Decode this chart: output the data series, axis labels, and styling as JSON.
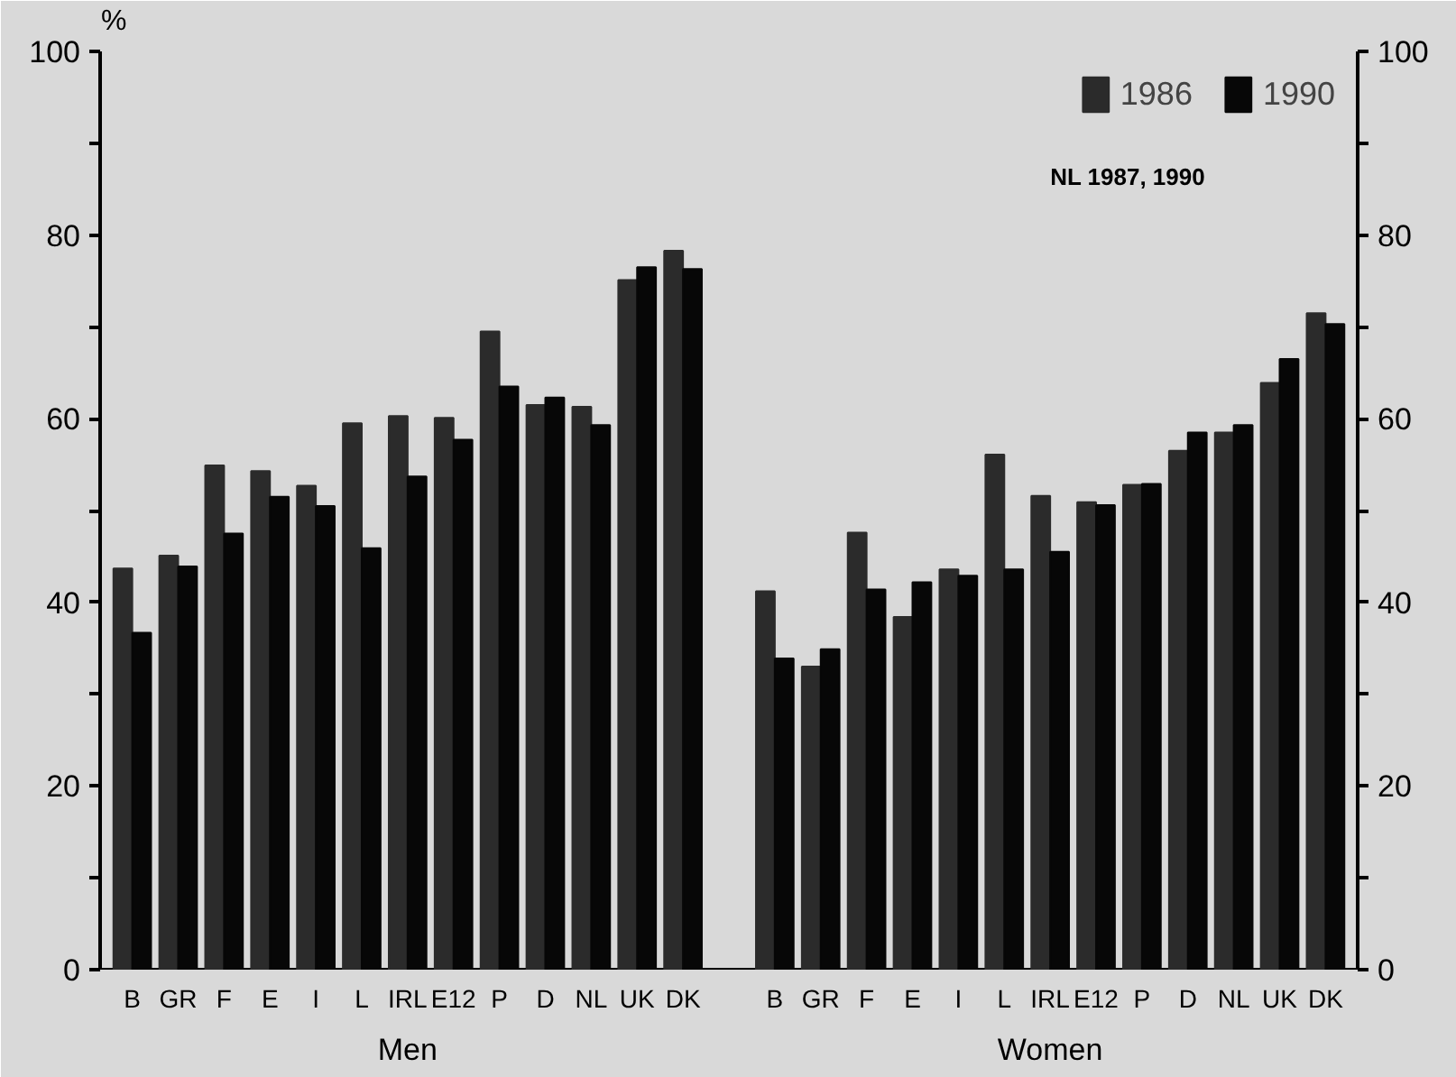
{
  "chart_data": {
    "type": "bar",
    "categories": [
      "B",
      "GR",
      "F",
      "E",
      "I",
      "L",
      "IRL",
      "E12",
      "P",
      "D",
      "NL",
      "UK",
      "DK",
      null,
      "B",
      "GR",
      "F",
      "E",
      "I",
      "L",
      "IRL",
      "E12",
      "P",
      "D",
      "NL",
      "UK",
      "DK"
    ],
    "series": [
      {
        "name": "1986",
        "color": "#2b2b2b",
        "values": [
          43.7,
          45.1,
          54.9,
          54.3,
          52.7,
          59.5,
          60.3,
          60.1,
          69.5,
          61.5,
          61.3,
          75.1,
          78.3,
          null,
          41.2,
          33.0,
          47.6,
          38.4,
          43.6,
          56.1,
          51.6,
          50.9,
          52.8,
          56.5,
          58.5,
          63.9,
          71.5
        ]
      },
      {
        "name": "1990",
        "color": "#070707",
        "values": [
          36.7,
          43.9,
          47.5,
          51.5,
          50.5,
          45.9,
          53.7,
          57.7,
          63.5,
          62.3,
          59.3,
          76.5,
          76.3,
          null,
          33.9,
          34.9,
          41.4,
          42.2,
          42.9,
          43.6,
          45.5,
          50.6,
          52.9,
          58.5,
          59.3,
          66.5,
          70.3
        ]
      }
    ],
    "ylabel": "%",
    "ylim": [
      0,
      100
    ],
    "yticks": [
      0,
      {
        "value": 10,
        "label": null
      },
      20,
      {
        "value": 30,
        "label": null
      },
      40,
      {
        "value": 50,
        "label": null
      },
      60,
      {
        "value": 70,
        "label": null
      },
      80,
      {
        "value": 90,
        "label": null
      },
      100
    ],
    "y2lim": [
      0,
      100
    ],
    "y2ticks": [
      0,
      {
        "value": 10,
        "label": null
      },
      20,
      {
        "value": 30,
        "label": null
      },
      40,
      {
        "value": 50,
        "label": null
      },
      60,
      {
        "value": 70,
        "label": null
      },
      80,
      {
        "value": 90,
        "label": null
      },
      100
    ],
    "annotations": [
      "Men",
      "Women",
      "NL 1987, 1990"
    ],
    "legend": "top right",
    "grid": false
  }
}
